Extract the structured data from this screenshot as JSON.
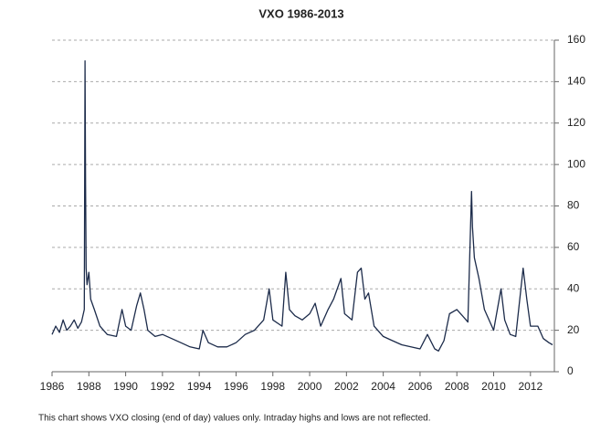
{
  "chart_data": {
    "type": "line",
    "title": "VXO 1986-2013",
    "note": "This chart shows VXO closing (end of day) values only. Intraday highs and lows are not reflected.",
    "x": [
      1986.0,
      1986.2,
      1986.4,
      1986.6,
      1986.8,
      1987.0,
      1987.2,
      1987.4,
      1987.6,
      1987.75,
      1987.79,
      1987.82,
      1987.85,
      1987.9,
      1988.0,
      1988.1,
      1988.3,
      1988.6,
      1989.0,
      1989.5,
      1989.8,
      1990.0,
      1990.3,
      1990.6,
      1990.8,
      1991.0,
      1991.2,
      1991.6,
      1992.0,
      1992.5,
      1993.0,
      1993.5,
      1994.0,
      1994.2,
      1994.5,
      1995.0,
      1995.5,
      1996.0,
      1996.5,
      1997.0,
      1997.5,
      1997.8,
      1998.0,
      1998.5,
      1998.7,
      1998.9,
      1999.2,
      1999.6,
      2000.0,
      2000.3,
      2000.6,
      2001.0,
      2001.3,
      2001.7,
      2001.9,
      2002.3,
      2002.6,
      2002.8,
      2003.0,
      2003.2,
      2003.5,
      2004.0,
      2004.5,
      2005.0,
      2005.5,
      2006.0,
      2006.4,
      2006.8,
      2007.0,
      2007.3,
      2007.6,
      2008.0,
      2008.3,
      2008.6,
      2008.8,
      2008.85,
      2008.95,
      2009.2,
      2009.5,
      2009.8,
      2010.0,
      2010.4,
      2010.6,
      2010.9,
      2011.2,
      2011.6,
      2011.8,
      2012.0,
      2012.4,
      2012.7,
      2013.0,
      2013.2
    ],
    "values": [
      18,
      22,
      19,
      25,
      20,
      22,
      25,
      21,
      24,
      30,
      150,
      90,
      50,
      42,
      48,
      35,
      30,
      22,
      18,
      17,
      30,
      22,
      20,
      32,
      38,
      30,
      20,
      17,
      18,
      16,
      14,
      12,
      11,
      20,
      14,
      12,
      12,
      14,
      18,
      20,
      25,
      40,
      25,
      22,
      48,
      30,
      27,
      25,
      28,
      33,
      22,
      30,
      35,
      45,
      28,
      25,
      48,
      50,
      35,
      38,
      22,
      17,
      15,
      13,
      12,
      11,
      18,
      11,
      10,
      15,
      28,
      30,
      27,
      24,
      87,
      70,
      55,
      45,
      30,
      24,
      20,
      40,
      25,
      18,
      17,
      50,
      35,
      22,
      22,
      16,
      14,
      13
    ],
    "color": "#1c2b4a",
    "xlim": [
      1986,
      2013.3
    ],
    "xticks": [
      1986,
      1988,
      1990,
      1992,
      1994,
      1996,
      1998,
      2000,
      2002,
      2004,
      2006,
      2008,
      2010,
      2012
    ],
    "ylim": [
      0,
      160
    ],
    "yticks": [
      0,
      20,
      40,
      60,
      80,
      100,
      120,
      140,
      160
    ],
    "grid": true
  }
}
